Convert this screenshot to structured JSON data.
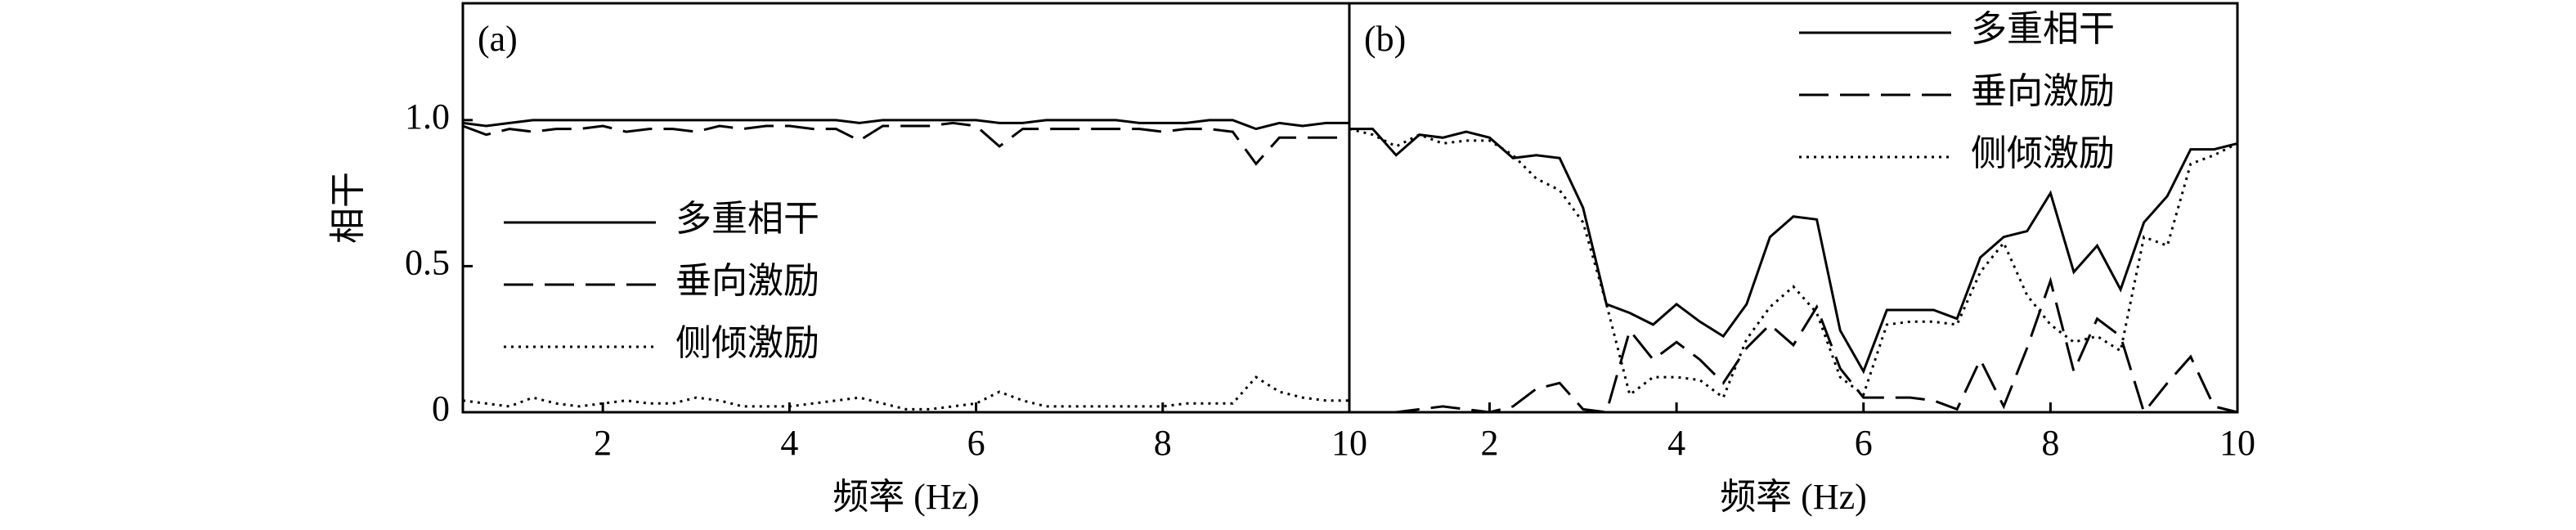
{
  "chart_data": [
    {
      "type": "line",
      "label": "(a)",
      "x_label": "频率 (Hz)",
      "y_label": "相干",
      "legend": "lower-left",
      "x": [
        0.5,
        0.75,
        1,
        1.25,
        1.5,
        1.75,
        2,
        2.25,
        2.5,
        2.75,
        3,
        3.25,
        3.5,
        3.75,
        4,
        4.25,
        4.5,
        4.75,
        5,
        5.25,
        5.5,
        5.75,
        6,
        6.25,
        6.5,
        6.75,
        7,
        7.25,
        7.5,
        7.75,
        8,
        8.25,
        8.5,
        8.75,
        9,
        9.25,
        9.5,
        9.75,
        10
      ],
      "xlim": [
        0.5,
        10
      ],
      "xticks": [
        2,
        4,
        6,
        8,
        10
      ],
      "ylim": [
        0,
        1.4
      ],
      "yticks": [
        0,
        0.5,
        {
          "value": 1,
          "label": "1.0"
        }
      ],
      "series": [
        {
          "name": "多重相干",
          "color": "#000000",
          "linestyle": "solid",
          "values": [
            0.99,
            0.98,
            0.99,
            1.0,
            1.0,
            1.0,
            1.0,
            1.0,
            1.0,
            1.0,
            1.0,
            1.0,
            1.0,
            1.0,
            1.0,
            1.0,
            1.0,
            0.99,
            1.0,
            1.0,
            1.0,
            1.0,
            1.0,
            0.99,
            0.99,
            1.0,
            1.0,
            1.0,
            1.0,
            0.99,
            0.99,
            0.99,
            1.0,
            1.0,
            0.97,
            0.99,
            0.98,
            0.99,
            0.99
          ]
        },
        {
          "name": "垂向激励",
          "color": "#000000",
          "linestyle": "dashed",
          "values": [
            0.98,
            0.95,
            0.97,
            0.96,
            0.97,
            0.97,
            0.98,
            0.96,
            0.97,
            0.97,
            0.96,
            0.98,
            0.97,
            0.98,
            0.98,
            0.97,
            0.97,
            0.93,
            0.98,
            0.98,
            0.98,
            0.99,
            0.98,
            0.91,
            0.97,
            0.97,
            0.97,
            0.97,
            0.97,
            0.97,
            0.96,
            0.97,
            0.97,
            0.96,
            0.85,
            0.94,
            0.94,
            0.94,
            0.94
          ]
        },
        {
          "name": "侧倾激励",
          "color": "#000000",
          "linestyle": "dotted",
          "values": [
            0.04,
            0.03,
            0.02,
            0.05,
            0.03,
            0.02,
            0.03,
            0.04,
            0.03,
            0.03,
            0.05,
            0.04,
            0.02,
            0.02,
            0.02,
            0.03,
            0.04,
            0.05,
            0.03,
            0.01,
            0.01,
            0.02,
            0.03,
            0.07,
            0.04,
            0.02,
            0.02,
            0.02,
            0.02,
            0.02,
            0.02,
            0.03,
            0.03,
            0.03,
            0.12,
            0.07,
            0.05,
            0.04,
            0.04
          ]
        }
      ]
    },
    {
      "type": "line",
      "label": "(b)",
      "x_label": "频率 (Hz)",
      "legend": "upper-right",
      "x": [
        0.5,
        0.75,
        1,
        1.25,
        1.5,
        1.75,
        2,
        2.25,
        2.5,
        2.75,
        3,
        3.25,
        3.5,
        3.75,
        4,
        4.25,
        4.5,
        4.75,
        5,
        5.25,
        5.5,
        5.75,
        6,
        6.25,
        6.5,
        6.75,
        7,
        7.25,
        7.5,
        7.75,
        8,
        8.25,
        8.5,
        8.75,
        9,
        9.25,
        9.5,
        9.75,
        10
      ],
      "xlim": [
        0.5,
        10
      ],
      "xticks": [
        2,
        4,
        6,
        8,
        10
      ],
      "ylim": [
        0,
        1.4
      ],
      "series": [
        {
          "name": "多重相干",
          "color": "#000000",
          "linestyle": "solid",
          "values": [
            0.97,
            0.97,
            0.88,
            0.95,
            0.94,
            0.96,
            0.94,
            0.87,
            0.88,
            0.87,
            0.7,
            0.37,
            0.34,
            0.3,
            0.37,
            0.31,
            0.26,
            0.37,
            0.6,
            0.67,
            0.66,
            0.28,
            0.14,
            0.35,
            0.35,
            0.35,
            0.32,
            0.53,
            0.6,
            0.62,
            0.75,
            0.48,
            0.57,
            0.42,
            0.65,
            0.74,
            0.9,
            0.9,
            0.92
          ]
        },
        {
          "name": "垂向激励",
          "color": "#000000",
          "linestyle": "dashed",
          "values": [
            0.0,
            0.0,
            0.0,
            0.01,
            0.02,
            0.01,
            0.0,
            0.02,
            0.08,
            0.1,
            0.01,
            0.0,
            0.28,
            0.18,
            0.24,
            0.18,
            0.1,
            0.22,
            0.3,
            0.23,
            0.36,
            0.15,
            0.05,
            0.05,
            0.05,
            0.04,
            0.01,
            0.18,
            0.02,
            0.22,
            0.45,
            0.14,
            0.32,
            0.26,
            0.0,
            0.1,
            0.19,
            0.02,
            0.0
          ]
        },
        {
          "name": "侧倾激励",
          "color": "#000000",
          "linestyle": "dotted",
          "values": [
            0.97,
            0.95,
            0.91,
            0.95,
            0.92,
            0.93,
            0.93,
            0.88,
            0.8,
            0.76,
            0.65,
            0.37,
            0.06,
            0.12,
            0.12,
            0.11,
            0.05,
            0.25,
            0.36,
            0.43,
            0.34,
            0.12,
            0.06,
            0.3,
            0.31,
            0.31,
            0.3,
            0.48,
            0.58,
            0.4,
            0.3,
            0.24,
            0.26,
            0.21,
            0.6,
            0.57,
            0.85,
            0.88,
            0.92
          ]
        }
      ]
    }
  ]
}
